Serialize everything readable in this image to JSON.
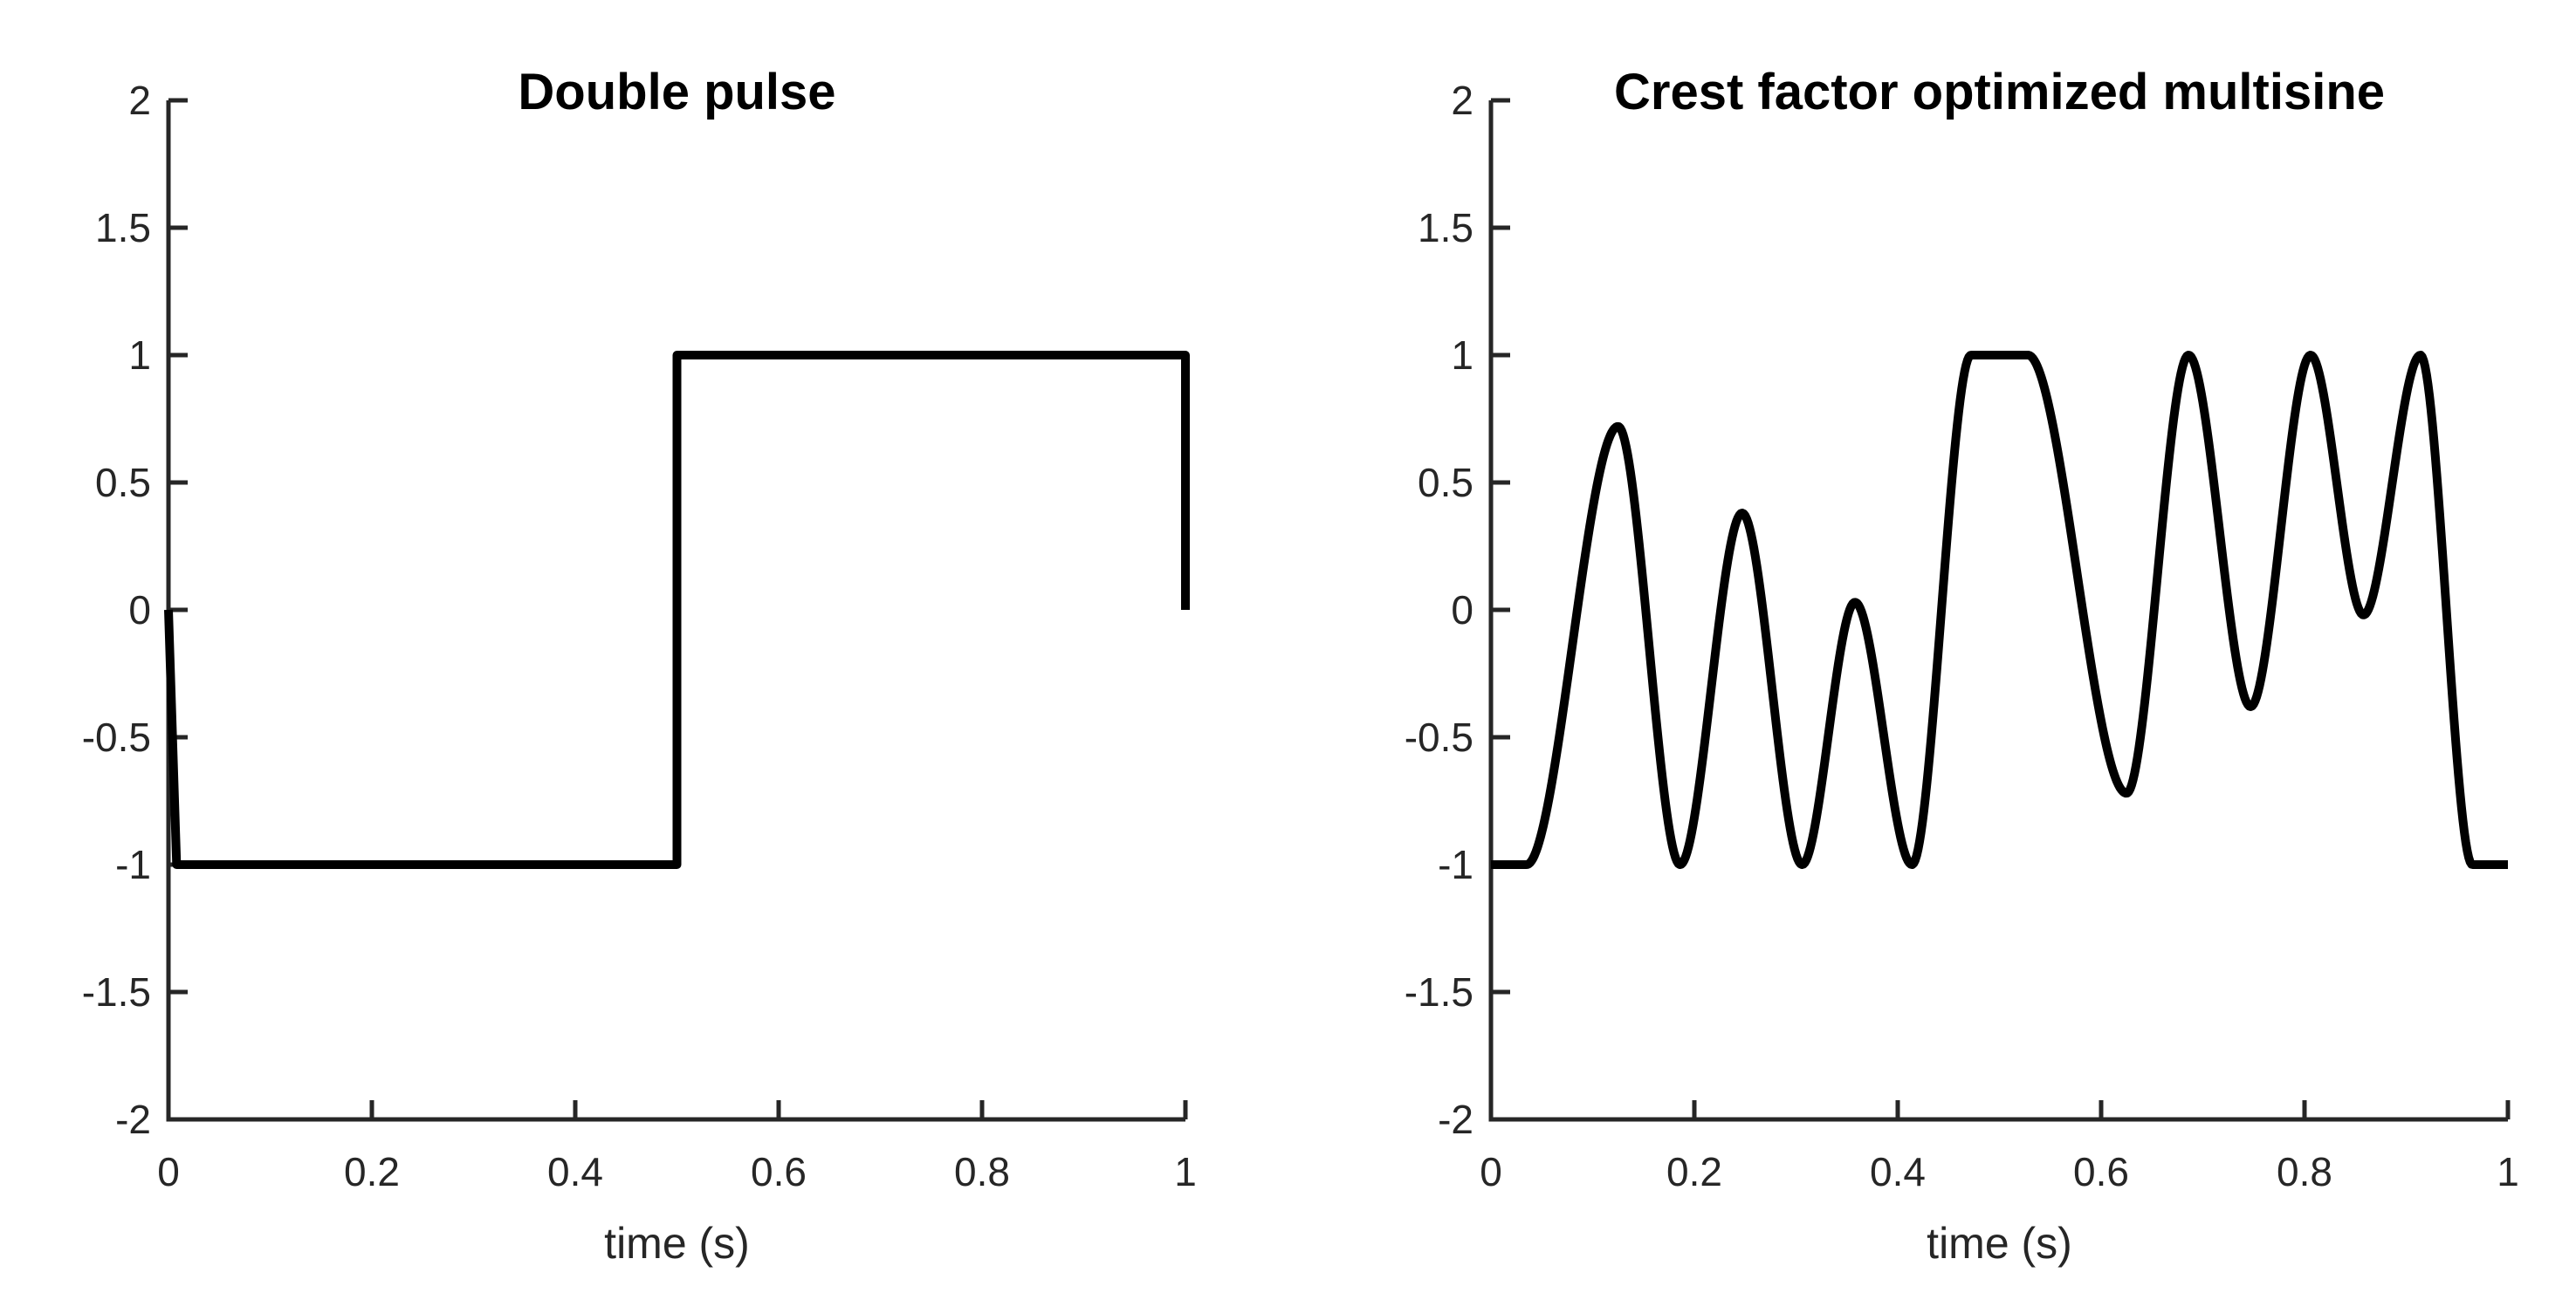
{
  "figure": {
    "background": "#ffffff",
    "axis_color": "#262626",
    "curve_color": "#000000",
    "curve_width": 10,
    "axis_width": 5,
    "tick_length": 22,
    "tick_font_size": 46
  },
  "chart_data": [
    {
      "type": "line",
      "title": "Double pulse",
      "xlabel": "time (s)",
      "ylabel": "",
      "xlim": [
        0,
        1
      ],
      "ylim": [
        -2,
        2
      ],
      "xticks": [
        0,
        0.2,
        0.4,
        0.6,
        0.8,
        1
      ],
      "xtick_labels": [
        "0",
        "0.2",
        "0.4",
        "0.6",
        "0.8",
        "1"
      ],
      "yticks": [
        -2,
        -1.5,
        -1,
        -0.5,
        0,
        0.5,
        1,
        1.5,
        2
      ],
      "ytick_labels": [
        "-2",
        "-1.5",
        "-1",
        "-0.5",
        "0",
        "0.5",
        "1",
        "1.5",
        "2"
      ],
      "grid": false,
      "legend": null,
      "interpolation": "linear",
      "points": [
        [
          0,
          0
        ],
        [
          0.008,
          -1
        ],
        [
          0.5,
          -1
        ],
        [
          0.5,
          1
        ],
        [
          1,
          1
        ],
        [
          1,
          0
        ]
      ]
    },
    {
      "type": "line",
      "title": "Crest factor optimized multisine",
      "xlabel": "time (s)",
      "ylabel": "",
      "xlim": [
        0,
        1
      ],
      "ylim": [
        -2,
        2
      ],
      "xticks": [
        0,
        0.2,
        0.4,
        0.6,
        0.8,
        1
      ],
      "xtick_labels": [
        "0",
        "0.2",
        "0.4",
        "0.6",
        "0.8",
        "1"
      ],
      "yticks": [
        -2,
        -1.5,
        -1,
        -0.5,
        0,
        0.5,
        1,
        1.5,
        2
      ],
      "ytick_labels": [
        "-2",
        "-1.5",
        "-1",
        "-0.5",
        "0",
        "0.5",
        "1",
        "1.5",
        "2"
      ],
      "grid": false,
      "legend": null,
      "interpolation": "monotone",
      "points": [
        [
          0.0,
          -1.0
        ],
        [
          0.035,
          -1.0
        ],
        [
          0.125,
          0.72
        ],
        [
          0.186,
          -1.0
        ],
        [
          0.247,
          0.38
        ],
        [
          0.306,
          -1.0
        ],
        [
          0.358,
          0.03
        ],
        [
          0.414,
          -1.0
        ],
        [
          0.472,
          1.0
        ],
        [
          0.528,
          1.0
        ],
        [
          0.625,
          -0.72
        ],
        [
          0.686,
          1.0
        ],
        [
          0.747,
          -0.38
        ],
        [
          0.806,
          1.0
        ],
        [
          0.858,
          -0.02
        ],
        [
          0.914,
          1.0
        ],
        [
          0.965,
          -1.0
        ],
        [
          1.0,
          -1.0
        ]
      ]
    }
  ]
}
